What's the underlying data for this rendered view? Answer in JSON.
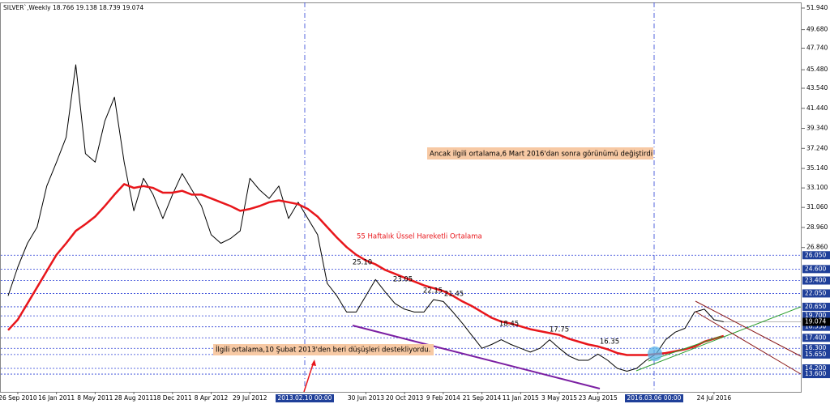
{
  "chart_data": {
    "type": "line",
    "title": "SILVER`,Weekly  18.766 19.138 18.739 19.074",
    "categories": [
      null,
      "26 Sep 2010",
      null,
      null,
      null,
      "16 Jan 2011",
      null,
      null,
      null,
      "8 May 2011",
      null,
      null,
      null,
      "28 Aug 2011",
      null,
      null,
      null,
      "18 Dec 2011",
      null,
      null,
      null,
      "8 Apr 2012",
      null,
      null,
      null,
      "29 Jul 2012",
      null,
      null,
      null,
      null,
      null,
      null,
      null,
      null,
      null,
      null,
      null,
      "30 Jun 2013",
      null,
      null,
      null,
      "20 Oct 2013",
      null,
      null,
      null,
      "9 Feb 2014",
      null,
      null,
      null,
      "21 Sep 2014",
      null,
      null,
      null,
      "11 Jan 2015",
      null,
      null,
      null,
      "3 May 2015",
      null,
      null,
      null,
      "23 Aug 2015",
      null,
      null,
      null,
      null,
      null,
      null,
      null,
      null,
      null,
      null,
      null,
      "24 Jul 2016",
      null
    ],
    "series": [
      {
        "name": "SILVER`",
        "color": "#000000",
        "values": [
          21.8,
          24.8,
          27.3,
          29.0,
          33.3,
          35.8,
          38.4,
          46.0,
          36.7,
          35.8,
          40.1,
          42.6,
          35.8,
          30.7,
          34.1,
          32.4,
          29.9,
          32.4,
          34.6,
          32.9,
          31.2,
          28.2,
          27.3,
          27.8,
          28.6,
          34.1,
          32.9,
          32.0,
          33.3,
          29.9,
          31.6,
          29.9,
          28.2,
          23.1,
          21.8,
          20.1,
          20.1,
          21.8,
          23.5,
          22.2,
          21.0,
          20.4,
          20.1,
          20.1,
          21.4,
          21.2,
          20.1,
          18.9,
          17.6,
          16.3,
          16.7,
          17.2,
          16.7,
          16.3,
          15.9,
          16.3,
          17.2,
          16.3,
          15.5,
          15.05,
          15.05,
          15.7,
          15.05,
          14.2,
          13.9,
          14.2,
          15.05,
          15.7,
          17.2,
          18.0,
          18.4,
          20.1,
          20.4,
          19.3,
          19.074
        ]
      },
      {
        "name": "55 Haftalık Üssel Hareketli Ortalama",
        "color": "#e8161b",
        "values": [
          18.2,
          19.3,
          21.0,
          22.7,
          24.4,
          26.1,
          27.3,
          28.6,
          29.3,
          30.1,
          31.2,
          32.4,
          33.5,
          33.1,
          33.3,
          33.1,
          32.6,
          32.6,
          32.8,
          32.4,
          32.4,
          32.0,
          31.6,
          31.2,
          30.7,
          30.9,
          31.2,
          31.6,
          31.8,
          31.6,
          31.4,
          30.9,
          30.1,
          29.0,
          27.9,
          26.9,
          26.1,
          25.5,
          25.1,
          24.5,
          24.1,
          23.7,
          23.3,
          22.9,
          22.6,
          22.3,
          21.8,
          21.2,
          20.7,
          20.1,
          19.5,
          19.1,
          18.9,
          18.6,
          18.3,
          18.1,
          17.9,
          17.7,
          17.3,
          17.0,
          16.7,
          16.5,
          16.2,
          15.8,
          15.6,
          15.6,
          15.6,
          15.7,
          15.8,
          16.0,
          16.2,
          16.5,
          17.0,
          17.3,
          17.6
        ]
      }
    ],
    "ylim": [
      11.74,
      52.53
    ],
    "yticks": [
      {
        "value": 51.94,
        "label": "51.940"
      },
      {
        "value": 49.68,
        "label": "49.680"
      },
      {
        "value": 47.74,
        "label": "47.740"
      },
      {
        "value": 45.48,
        "label": "45.480"
      },
      {
        "value": 43.54,
        "label": "43.540"
      },
      {
        "value": 41.44,
        "label": "41.440"
      },
      {
        "value": 39.34,
        "label": "39.340"
      },
      {
        "value": 37.24,
        "label": "37.240"
      },
      {
        "value": 35.14,
        "label": "35.140"
      },
      {
        "value": 33.1,
        "label": "33.100"
      },
      {
        "value": 31.06,
        "label": "31.060"
      },
      {
        "value": 28.96,
        "label": "28.960"
      },
      {
        "value": 26.86,
        "label": "26.860"
      }
    ],
    "levels": [
      {
        "value": 26.05,
        "label": "26.050"
      },
      {
        "value": 24.6,
        "label": "24.600"
      },
      {
        "value": 23.4,
        "label": "23.400"
      },
      {
        "value": 22.05,
        "label": "22.050"
      },
      {
        "value": 20.65,
        "label": "20.650"
      },
      {
        "value": 19.7,
        "label": "19.700"
      },
      {
        "value": 18.55,
        "label": "18.550"
      },
      {
        "value": 17.4,
        "label": "17.400"
      },
      {
        "value": 16.3,
        "label": "16.300"
      },
      {
        "value": 15.65,
        "label": "15.650"
      },
      {
        "value": 14.2,
        "label": "14.200"
      },
      {
        "value": 13.6,
        "label": "13.600"
      }
    ],
    "current_price": {
      "value": 19.074,
      "label": "19.074"
    },
    "vlines": [
      "2013.02.10 00:00",
      "2016.03.06 00:00"
    ],
    "price_notes": [
      "25.10",
      "23.05",
      "22.15",
      "21.45",
      "18.45",
      "17.75",
      "16.35"
    ],
    "annotations": [
      "Ancak ilgili ortalama,6 Mart 2016'dan sonra görünümü değiştirdi",
      "55 Haftalık Üssel Hareketli Ortalama",
      "İlgili ortalama,10 Şubat 2013'den beri düşüşleri destekliyordu."
    ]
  }
}
